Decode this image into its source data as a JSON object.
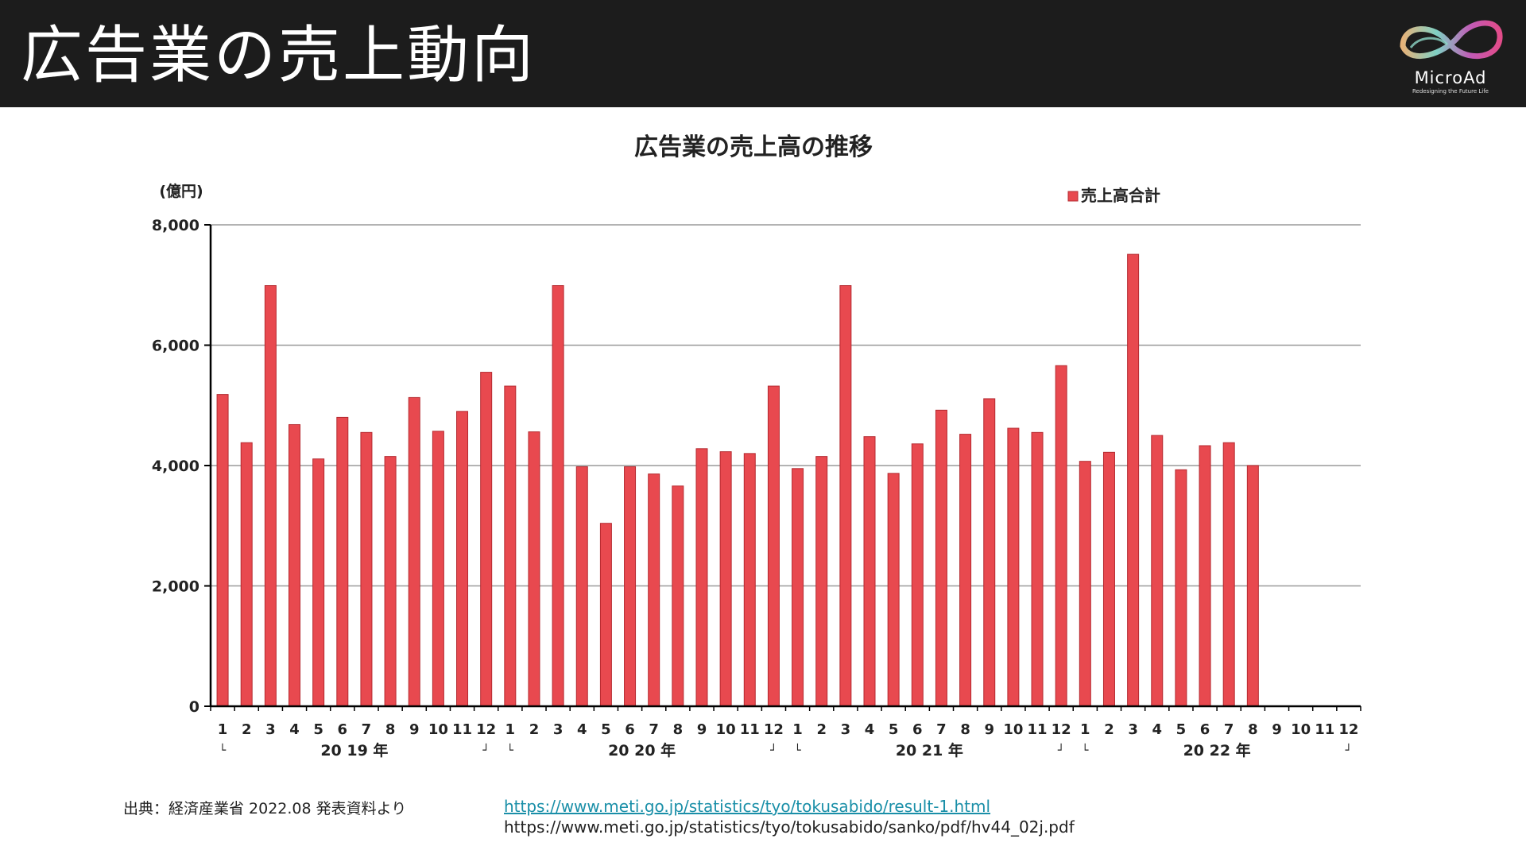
{
  "header": {
    "title": "広告業の売上動向",
    "logo_text": "MicroAd",
    "logo_tagline": "Redesigning the Future Life"
  },
  "colors": {
    "header_bg": "#1c1c1c",
    "bar_fill": "#e8494f",
    "bar_edge": "#b52a30",
    "link": "#1a8fa8"
  },
  "chart_data": {
    "type": "bar",
    "title": "広告業の売上高の推移",
    "ylabel": "(億円)",
    "xlabel": "",
    "ylim": [
      0,
      8000
    ],
    "yticks": [
      0,
      2000,
      4000,
      6000,
      8000
    ],
    "ytick_labels": [
      "0",
      "2,000",
      "4,000",
      "6,000",
      "8,000"
    ],
    "legend": "売上高合計",
    "legend_position": "top-right",
    "grid": true,
    "categories": [
      "1",
      "2",
      "3",
      "4",
      "5",
      "6",
      "7",
      "8",
      "9",
      "10",
      "11",
      "12",
      "1",
      "2",
      "3",
      "4",
      "5",
      "6",
      "7",
      "8",
      "9",
      "10",
      "11",
      "12",
      "1",
      "2",
      "3",
      "4",
      "5",
      "6",
      "7",
      "8",
      "9",
      "10",
      "11",
      "12",
      "1",
      "2",
      "3",
      "4",
      "5",
      "6",
      "7",
      "8",
      "9",
      "10",
      "11",
      "12"
    ],
    "series": [
      {
        "name": "売上高合計",
        "values": [
          5180,
          4380,
          6990,
          4680,
          4110,
          4800,
          4550,
          4150,
          5130,
          4570,
          4900,
          5550,
          5320,
          4560,
          6990,
          3980,
          3040,
          3980,
          3860,
          3660,
          4280,
          4230,
          4200,
          5320,
          3950,
          4150,
          6990,
          4480,
          3870,
          4360,
          4920,
          4520,
          5110,
          4620,
          4550,
          5660,
          4070,
          4220,
          7510,
          4500,
          3930,
          4330,
          4380,
          4000,
          null,
          null,
          null,
          null
        ]
      }
    ],
    "year_labels": [
      "20 19 年",
      "20 20 年",
      "20 21 年",
      "20 22 年"
    ],
    "bracket_start": "└",
    "bracket_end": "┘"
  },
  "footer": {
    "source": "出典：経済産業省 2022.08 発表資料より",
    "link1": "https://www.meti.go.jp/statistics/tyo/tokusabido/result-1.html",
    "link2": "https://www.meti.go.jp/statistics/tyo/tokusabido/sanko/pdf/hv44_02j.pdf"
  }
}
